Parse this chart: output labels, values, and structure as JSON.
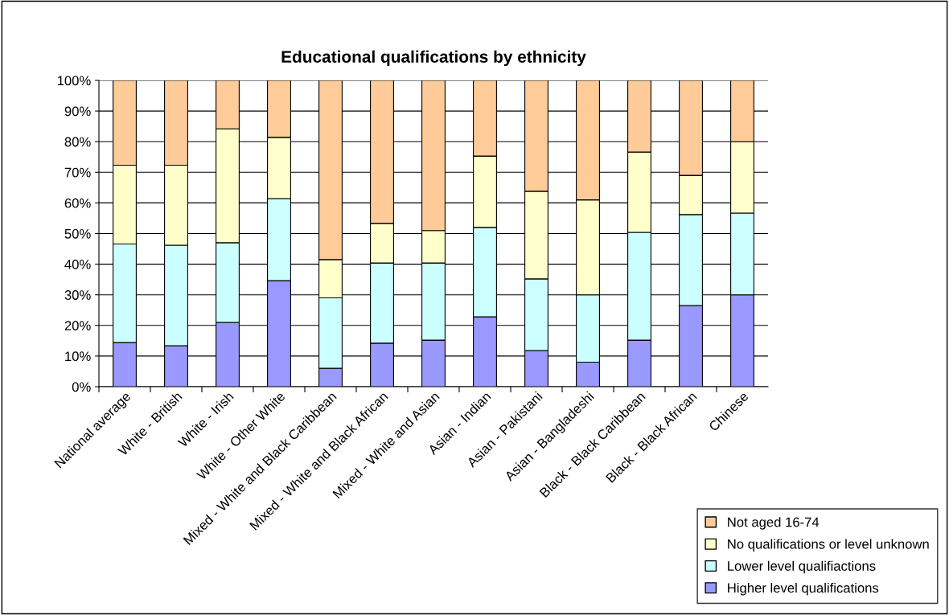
{
  "chart_data": {
    "type": "bar",
    "title": "Educational qualifications by ethnicity",
    "stacked": true,
    "categories": [
      "National average",
      "White - British",
      "White - Irish",
      "White - Other White",
      "Mixed - White and Black Caribbean",
      "Mixed - White and Black African",
      "Mixed - White and Asian",
      "Asian - Indian",
      "Asian - Pakistani",
      "Asian - Bangladeshi",
      "Black - Black Caribbean",
      "Black - Black African",
      "Chinese"
    ],
    "series": [
      {
        "name": "Higher level qualifications",
        "color": "#9999ff",
        "values": [
          14.4,
          13.4,
          21,
          34.6,
          6,
          14.2,
          15.2,
          22.8,
          11.8,
          8,
          15.2,
          26.5,
          30
        ]
      },
      {
        "name": "Lower level qualifiactions",
        "color": "#ccffff",
        "values": [
          32.2,
          32.8,
          26,
          26.8,
          23,
          26.2,
          25.2,
          29.2,
          23.4,
          22,
          35.2,
          29.7,
          26.7
        ]
      },
      {
        "name": "No qualifications or level unknown",
        "color": "#ffffcc",
        "values": [
          25.7,
          26.1,
          37.2,
          20,
          12.5,
          12.9,
          10.6,
          23.3,
          28.6,
          31,
          26.2,
          12.8,
          23.3
        ]
      },
      {
        "name": "Not aged 16-74",
        "color": "#ffcc99",
        "values": [
          27.7,
          27.7,
          15.8,
          18.6,
          58.5,
          46.7,
          49,
          24.7,
          36.2,
          39,
          23.4,
          31,
          20
        ]
      }
    ],
    "ylim": [
      0,
      100
    ],
    "yticks": [
      {
        "value": 0,
        "label": "0%"
      },
      {
        "value": 10,
        "label": "10%"
      },
      {
        "value": 20,
        "label": "20%"
      },
      {
        "value": 30,
        "label": "30%"
      },
      {
        "value": 40,
        "label": "40%"
      },
      {
        "value": 50,
        "label": "50%"
      },
      {
        "value": 60,
        "label": "60%"
      },
      {
        "value": 70,
        "label": "70%"
      },
      {
        "value": 80,
        "label": "80%"
      },
      {
        "value": 90,
        "label": "90%"
      },
      {
        "value": 100,
        "label": "100%"
      }
    ],
    "grid": "y",
    "legend": "bottom right"
  }
}
